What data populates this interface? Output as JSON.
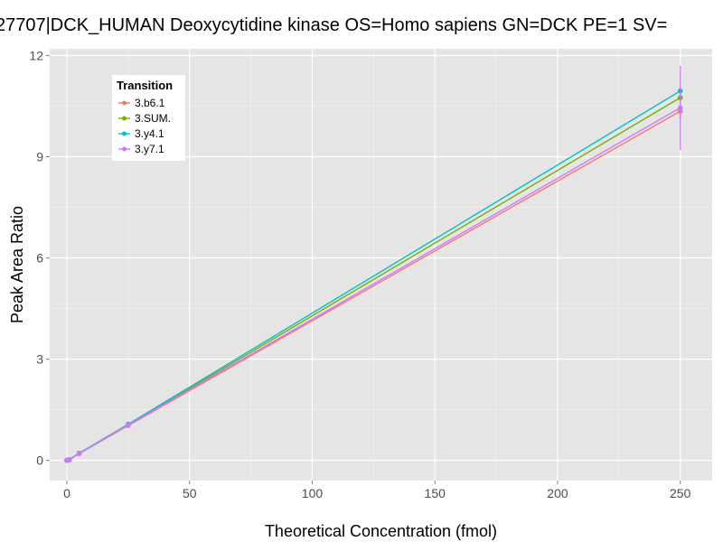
{
  "chart_data": {
    "type": "line",
    "title": "27707|DCK_HUMAN Deoxycytidine kinase OS=Homo sapiens GN=DCK PE=1 SV=",
    "xlabel": "Theoretical Concentration (fmol)",
    "ylabel": "Peak Area Ratio",
    "xlim": [
      -7,
      263
    ],
    "ylim": [
      -0.6,
      12.2
    ],
    "x_ticks": [
      0,
      50,
      100,
      150,
      200,
      250
    ],
    "y_ticks": [
      0,
      3,
      6,
      9,
      12
    ],
    "grid": true,
    "legend": {
      "title": "Transition",
      "position": "top-left"
    },
    "x": [
      0,
      0.5,
      1,
      5,
      25,
      250
    ],
    "series": [
      {
        "name": "3.b6.1",
        "color": "#F8766D",
        "values": [
          0,
          0.01,
          0.02,
          0.2,
          1.03,
          10.35
        ],
        "error": [
          0,
          0,
          0,
          0,
          0,
          0.25
        ]
      },
      {
        "name": "3.SUM.",
        "color": "#7CAE00",
        "values": [
          0,
          0.01,
          0.02,
          0.21,
          1.05,
          10.75
        ],
        "error": [
          0,
          0,
          0,
          0,
          0,
          0.1
        ]
      },
      {
        "name": "3.y4.1",
        "color": "#00BFC4",
        "values": [
          0,
          0.01,
          0.02,
          0.21,
          1.07,
          10.95
        ],
        "error": [
          0,
          0,
          0,
          0,
          0,
          0.1
        ]
      },
      {
        "name": "3.y7.1",
        "color": "#C77CFF",
        "values": [
          0,
          0.01,
          0.02,
          0.2,
          1.05,
          10.45
        ],
        "error": [
          0,
          0,
          0,
          0,
          0,
          1.25
        ]
      }
    ]
  },
  "colors": {
    "panel_background": "#e5e5e5",
    "grid_major": "#ffffff",
    "grid_minor": "#f2f2f2"
  }
}
